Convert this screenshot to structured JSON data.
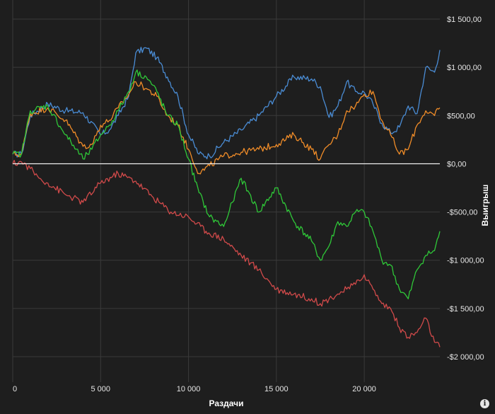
{
  "chart_data": {
    "type": "line",
    "title": "",
    "xlabel": "Раздачи",
    "ylabel": "Выигрыш",
    "xlim": [
      0,
      24300
    ],
    "ylim": [
      -2100,
      1500
    ],
    "grid": true,
    "x_ticks": [
      0,
      5000,
      10000,
      15000,
      20000
    ],
    "x_tick_labels": [
      "0",
      "5 000",
      "10 000",
      "15 000",
      "20 000"
    ],
    "y_ticks": [
      1500,
      1000,
      500,
      0,
      -500,
      -1000,
      -1500,
      -2000
    ],
    "y_tick_labels": [
      "$1 500,00",
      "$1 000,00",
      "$500,00",
      "$0,00",
      "-$500,00",
      "-$1 000,00",
      "-$1 500,00",
      "-$2 000,00"
    ],
    "series": [
      {
        "color": "#4a8cd4",
        "x": [
          0,
          500,
          1000,
          2000,
          3000,
          4000,
          5000,
          5500,
          6000,
          6600,
          7000,
          7600,
          8200,
          8800,
          9400,
          10000,
          10600,
          11200,
          12000,
          13000,
          14000,
          15000,
          16000,
          17000,
          17500,
          18000,
          18500,
          19000,
          19500,
          20000,
          20500,
          21000,
          21500,
          22000,
          22500,
          23000,
          23500,
          24000,
          24300
        ],
        "values": [
          100,
          100,
          500,
          620,
          550,
          530,
          300,
          350,
          500,
          700,
          1150,
          1200,
          1100,
          900,
          700,
          300,
          100,
          80,
          220,
          350,
          500,
          700,
          900,
          880,
          800,
          480,
          600,
          850,
          750,
          740,
          620,
          420,
          320,
          380,
          600,
          520,
          1000,
          950,
          1180
        ]
      },
      {
        "color": "#f08c28",
        "x": [
          0,
          500,
          1000,
          2000,
          3000,
          4000,
          4500,
          5000,
          5500,
          6000,
          6600,
          7000,
          7600,
          8200,
          8800,
          9400,
          10000,
          10600,
          11200,
          12000,
          13000,
          14000,
          15000,
          16000,
          17000,
          17500,
          18000,
          18500,
          19000,
          19500,
          20000,
          20500,
          21000,
          21500,
          22000,
          22500,
          23000,
          23500,
          24000,
          24300
        ],
        "values": [
          100,
          100,
          520,
          580,
          450,
          180,
          200,
          400,
          450,
          580,
          720,
          850,
          780,
          700,
          500,
          400,
          150,
          -100,
          -20,
          80,
          120,
          150,
          200,
          300,
          150,
          50,
          200,
          300,
          550,
          600,
          720,
          750,
          450,
          300,
          100,
          150,
          400,
          550,
          500,
          580
        ]
      },
      {
        "color": "#2fc838",
        "x": [
          0,
          500,
          1000,
          2000,
          3000,
          4000,
          4500,
          5000,
          5500,
          6000,
          6600,
          7000,
          7600,
          8200,
          8800,
          9400,
          10000,
          10600,
          11200,
          12000,
          12500,
          13000,
          14000,
          15000,
          16000,
          17000,
          17500,
          18000,
          18500,
          19000,
          19500,
          20000,
          20500,
          21000,
          21500,
          22000,
          22500,
          23000,
          23500,
          24000,
          24300
        ],
        "values": [
          100,
          100,
          550,
          600,
          300,
          50,
          150,
          300,
          400,
          550,
          750,
          950,
          900,
          750,
          500,
          400,
          50,
          -300,
          -550,
          -650,
          -400,
          -150,
          -500,
          -250,
          -600,
          -800,
          -1000,
          -850,
          -600,
          -650,
          -500,
          -500,
          -700,
          -1000,
          -1050,
          -1300,
          -1400,
          -1100,
          -950,
          -900,
          -700
        ]
      },
      {
        "color": "#d14a4a",
        "x": [
          0,
          500,
          1000,
          1500,
          2000,
          3000,
          4000,
          5000,
          6000,
          7000,
          8000,
          9000,
          10000,
          11000,
          12000,
          13000,
          14000,
          15000,
          16000,
          17000,
          17500,
          18000,
          18500,
          19000,
          19500,
          20000,
          20500,
          21000,
          21500,
          22000,
          22500,
          23000,
          23500,
          24000,
          24300
        ],
        "values": [
          0,
          20,
          -50,
          -150,
          -200,
          -320,
          -400,
          -200,
          -100,
          -180,
          -350,
          -500,
          -550,
          -700,
          -780,
          -950,
          -1100,
          -1300,
          -1350,
          -1400,
          -1450,
          -1400,
          -1350,
          -1300,
          -1250,
          -1150,
          -1300,
          -1450,
          -1500,
          -1700,
          -1800,
          -1750,
          -1600,
          -1850,
          -1900
        ]
      }
    ]
  },
  "zero_line_color": "#ffffff",
  "info_icon": {
    "symbol": "i",
    "name": "info-icon"
  }
}
